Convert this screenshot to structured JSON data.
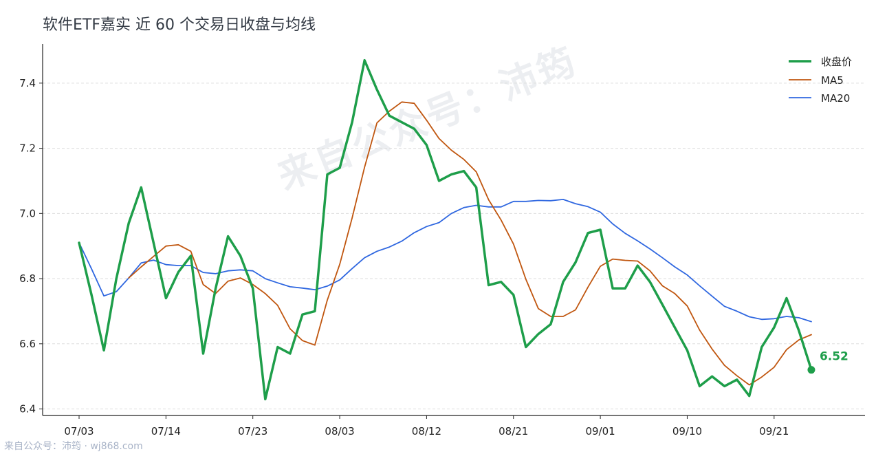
{
  "title": "软件ETF嘉实 近 60 个交易日收盘与均线",
  "watermark": "来自公众号：沛筠",
  "source": "来自公众号：沛筠 · wj868.com",
  "colors": {
    "close": "#1e9e4a",
    "ma5": "#c0560f",
    "ma20": "#2f67e0",
    "grid": "#dddddd",
    "axis": "#222222"
  },
  "chart_data": {
    "type": "line",
    "title": "软件ETF嘉实 近 60 个交易日收盘与均线",
    "ylim": [
      6.38,
      7.52
    ],
    "yticks": [
      "6.4",
      "6.6",
      "6.8",
      "7.0",
      "7.2",
      "7.4"
    ],
    "xticks": [
      {
        "index": 0,
        "label": "07/03"
      },
      {
        "index": 7,
        "label": "07/14"
      },
      {
        "index": 14,
        "label": "07/23"
      },
      {
        "index": 21,
        "label": "08/03"
      },
      {
        "index": 28,
        "label": "08/12"
      },
      {
        "index": 35,
        "label": "08/21"
      },
      {
        "index": 42,
        "label": "09/01"
      },
      {
        "index": 49,
        "label": "09/10"
      },
      {
        "index": 56,
        "label": "09/21"
      }
    ],
    "grid": "horizontal dashed",
    "legend_position": "top-right",
    "last_value_label": "6.52",
    "series": [
      {
        "name": "收盘价",
        "values": [
          6.91,
          6.75,
          6.58,
          6.8,
          6.97,
          7.08,
          6.91,
          6.74,
          6.82,
          6.87,
          6.57,
          6.77,
          6.93,
          6.87,
          6.77,
          6.43,
          6.59,
          6.57,
          6.69,
          6.7,
          7.12,
          7.14,
          7.28,
          7.47,
          7.38,
          7.3,
          7.28,
          7.26,
          7.21,
          7.1,
          7.12,
          7.13,
          7.08,
          6.78,
          6.79,
          6.75,
          6.59,
          6.63,
          6.66,
          6.79,
          6.85,
          6.94,
          6.95,
          6.77,
          6.77,
          6.84,
          6.79,
          6.72,
          6.65,
          6.58,
          6.47,
          6.5,
          6.47,
          6.49,
          6.44,
          6.59,
          6.65,
          6.74,
          6.64,
          6.52
        ]
      },
      {
        "name": "MA5",
        "values": [
          null,
          null,
          null,
          null,
          6.802,
          6.836,
          6.868,
          6.9,
          6.904,
          6.884,
          6.782,
          6.754,
          6.792,
          6.802,
          6.782,
          6.754,
          6.718,
          6.646,
          6.61,
          6.596,
          6.734,
          6.844,
          6.986,
          7.142,
          7.278,
          7.314,
          7.342,
          7.338,
          7.286,
          7.23,
          7.194,
          7.166,
          7.128,
          7.042,
          6.98,
          6.906,
          6.798,
          6.708,
          6.684,
          6.684,
          6.704,
          6.774,
          6.838,
          6.86,
          6.856,
          6.854,
          6.824,
          6.778,
          6.754,
          6.716,
          6.642,
          6.584,
          6.534,
          6.502,
          6.474,
          6.498,
          6.528,
          6.582,
          6.612,
          6.628
        ]
      },
      {
        "name": "MA20",
        "values": [
          6.91,
          6.83,
          6.747,
          6.76,
          6.802,
          6.848,
          6.857,
          6.843,
          6.84,
          6.84,
          6.819,
          6.815,
          6.824,
          6.827,
          6.824,
          6.8,
          6.787,
          6.775,
          6.771,
          6.766,
          6.777,
          6.796,
          6.831,
          6.864,
          6.884,
          6.897,
          6.915,
          6.941,
          6.96,
          6.972,
          7.0,
          7.018,
          7.025,
          7.02,
          7.02,
          7.037,
          7.037,
          7.04,
          7.039,
          7.043,
          7.03,
          7.021,
          7.004,
          6.968,
          6.939,
          6.916,
          6.891,
          6.864,
          6.836,
          6.811,
          6.778,
          6.746,
          6.715,
          6.7,
          6.683,
          6.675,
          6.677,
          6.684,
          6.68,
          6.668
        ]
      }
    ]
  }
}
